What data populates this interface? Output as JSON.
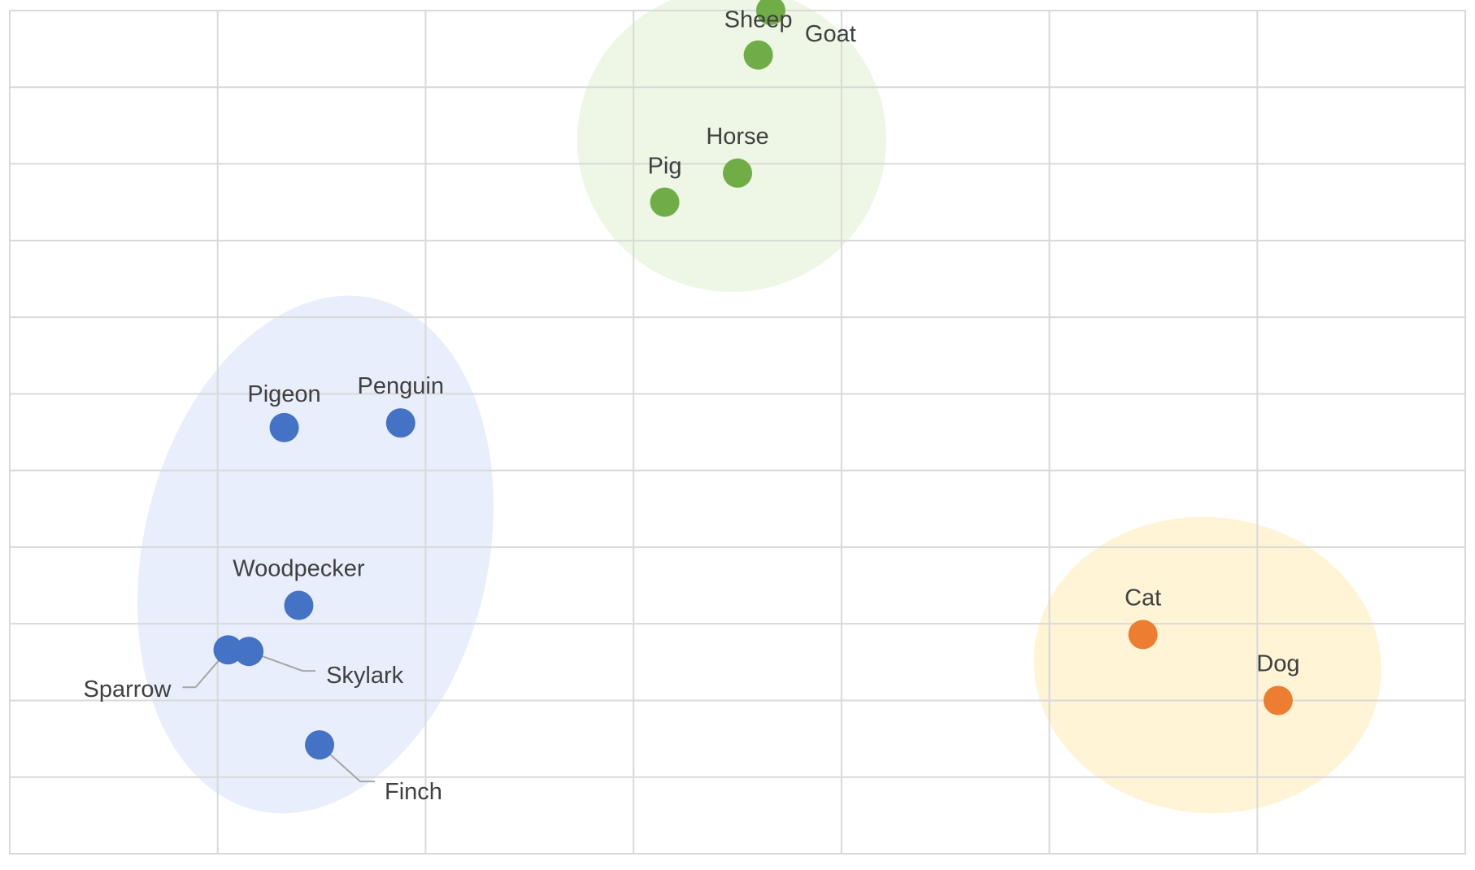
{
  "chart_data": {
    "type": "scatter",
    "title": "",
    "xlabel": "",
    "ylabel": "",
    "xlim": [
      0,
      7
    ],
    "ylim": [
      0,
      11
    ],
    "grid": true,
    "axis_labels_shown": false,
    "legend": "none",
    "series": [
      {
        "color": "#4472c4",
        "cluster_color": "#e8eefb",
        "points": [
          {
            "label": "Pigeon",
            "x": 1.32,
            "y": 5.56
          },
          {
            "label": "Penguin",
            "x": 1.88,
            "y": 5.62
          },
          {
            "label": "Woodpecker",
            "x": 1.39,
            "y": 3.24
          },
          {
            "label": "Sparrow",
            "x": 1.05,
            "y": 2.66
          },
          {
            "label": "Skylark",
            "x": 1.15,
            "y": 2.64
          },
          {
            "label": "Finch",
            "x": 1.49,
            "y": 1.42
          }
        ]
      },
      {
        "color": "#70ad47",
        "cluster_color": "#eef6e5",
        "points": [
          {
            "label": "Sheep",
            "x": 3.6,
            "y": 10.42
          },
          {
            "label": "Goat",
            "x": 3.66,
            "y": 11.0
          },
          {
            "label": "Horse",
            "x": 3.5,
            "y": 8.88
          },
          {
            "label": "Pig",
            "x": 3.15,
            "y": 8.5
          }
        ]
      },
      {
        "color": "#ed7d31",
        "cluster_color": "#fff4d6",
        "points": [
          {
            "label": "Cat",
            "x": 5.45,
            "y": 2.86
          },
          {
            "label": "Dog",
            "x": 6.1,
            "y": 2.0
          }
        ]
      }
    ]
  }
}
